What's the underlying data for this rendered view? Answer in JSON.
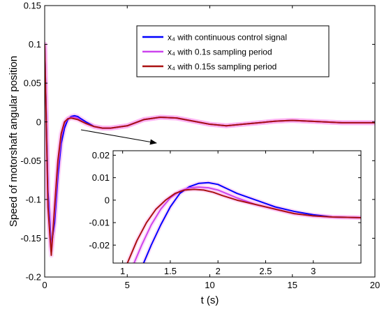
{
  "chart_data": [
    {
      "type": "line",
      "title": "",
      "xlabel": "t (s)",
      "ylabel": "Speed of motorshaft angular position",
      "xlim": [
        0,
        20
      ],
      "ylim": [
        -0.2,
        0.15
      ],
      "xticks": [
        "0",
        "5",
        "10",
        "15",
        "20"
      ],
      "yticks": [
        "-0.2",
        "-0.15",
        "-0.1",
        "-0.05",
        "0",
        "0.05",
        "0.1",
        "0.15"
      ],
      "grid": false,
      "legend_position": "top-right",
      "series": [
        {
          "name": "x₄ with continuous control signal",
          "color": "#0000ff",
          "x": [
            0,
            0.2,
            0.4,
            0.6,
            0.8,
            1.0,
            1.2,
            1.4,
            1.6,
            1.8,
            2.0,
            2.2,
            2.5,
            3.0,
            3.5,
            4.0,
            5.0,
            6.0,
            7.0,
            8.0,
            9.0,
            10.0,
            11.0,
            12.0,
            13.0,
            14.0,
            15.0,
            16.0,
            17.0,
            18.0,
            19.0,
            20.0
          ],
          "y": [
            0.1,
            -0.09,
            -0.16,
            -0.13,
            -0.07,
            -0.028,
            -0.008,
            0.003,
            0.007,
            0.008,
            0.007,
            0.004,
            0.0,
            -0.006,
            -0.008,
            -0.008,
            -0.005,
            0.003,
            0.006,
            0.005,
            0.001,
            -0.003,
            -0.005,
            -0.003,
            -0.001,
            0.001,
            0.002,
            0.001,
            0.0,
            -0.001,
            -0.001,
            -0.001
          ]
        },
        {
          "name": "x₄ with 0.1s sampling period",
          "color": "#cc44ee",
          "x": [
            0,
            0.2,
            0.4,
            0.6,
            0.8,
            1.0,
            1.2,
            1.4,
            1.6,
            1.8,
            2.0,
            2.2,
            2.5,
            3.0,
            3.5,
            4.0,
            5.0,
            6.0,
            7.0,
            8.0,
            9.0,
            10.0,
            11.0,
            12.0,
            13.0,
            14.0,
            15.0,
            16.0,
            17.0,
            18.0,
            19.0,
            20.0
          ],
          "y": [
            0.1,
            -0.1,
            -0.165,
            -0.12,
            -0.06,
            -0.02,
            -0.002,
            0.004,
            0.006,
            0.006,
            0.005,
            0.002,
            -0.002,
            -0.006,
            -0.008,
            -0.008,
            -0.005,
            0.003,
            0.006,
            0.005,
            0.001,
            -0.003,
            -0.005,
            -0.003,
            -0.001,
            0.001,
            0.002,
            0.001,
            0.0,
            -0.001,
            -0.001,
            -0.001
          ]
        },
        {
          "name": "x₄ with 0.15s sampling period",
          "color": "#aa1111",
          "x": [
            0,
            0.2,
            0.4,
            0.6,
            0.8,
            1.0,
            1.2,
            1.4,
            1.6,
            1.8,
            2.0,
            2.2,
            2.5,
            3.0,
            3.5,
            4.0,
            5.0,
            6.0,
            7.0,
            8.0,
            9.0,
            10.0,
            11.0,
            12.0,
            13.0,
            14.0,
            15.0,
            16.0,
            17.0,
            18.0,
            19.0,
            20.0
          ],
          "y": [
            0.1,
            -0.11,
            -0.172,
            -0.11,
            -0.05,
            -0.015,
            -0.0,
            0.004,
            0.005,
            0.004,
            0.003,
            0.001,
            -0.002,
            -0.006,
            -0.008,
            -0.008,
            -0.005,
            0.003,
            0.006,
            0.005,
            0.001,
            -0.003,
            -0.005,
            -0.003,
            -0.001,
            0.001,
            0.002,
            0.001,
            0.0,
            -0.001,
            -0.001,
            -0.001
          ]
        }
      ]
    },
    {
      "type": "line",
      "title": "",
      "xlabel": "",
      "ylabel": "",
      "xlim": [
        0.9,
        3.5
      ],
      "ylim": [
        -0.028,
        0.022
      ],
      "xticks": [
        "1",
        "1.5",
        "2",
        "2.5",
        "3"
      ],
      "yticks": [
        "-0.02",
        "-0.01",
        "0",
        "0.01",
        "0.02"
      ],
      "grid": false,
      "series": [
        {
          "name": "x₄ with continuous control signal",
          "color": "#0000ff",
          "x": [
            1.22,
            1.3,
            1.4,
            1.5,
            1.6,
            1.7,
            1.8,
            1.9,
            2.0,
            2.1,
            2.2,
            2.4,
            2.6,
            2.8,
            3.0,
            3.2,
            3.5
          ],
          "y": [
            -0.028,
            -0.02,
            -0.011,
            -0.003,
            0.003,
            0.006,
            0.0075,
            0.0078,
            0.007,
            0.005,
            0.003,
            0.0,
            -0.003,
            -0.005,
            -0.0065,
            -0.0075,
            -0.0078
          ]
        },
        {
          "name": "x₄ with 0.1s sampling period",
          "color": "#cc44ee",
          "x": [
            1.12,
            1.2,
            1.3,
            1.4,
            1.5,
            1.6,
            1.7,
            1.8,
            1.9,
            2.0,
            2.2,
            2.4,
            2.6,
            2.8,
            3.0,
            3.2,
            3.5
          ],
          "y": [
            -0.028,
            -0.02,
            -0.011,
            -0.004,
            0.001,
            0.004,
            0.0055,
            0.0058,
            0.0055,
            0.0045,
            0.001,
            -0.002,
            -0.004,
            -0.006,
            -0.007,
            -0.0075,
            -0.0078
          ]
        },
        {
          "name": "x₄ with 0.15s sampling period",
          "color": "#aa1111",
          "x": [
            1.05,
            1.15,
            1.25,
            1.35,
            1.45,
            1.55,
            1.65,
            1.75,
            1.85,
            1.95,
            2.05,
            2.2,
            2.4,
            2.6,
            2.8,
            3.0,
            3.2,
            3.5
          ],
          "y": [
            -0.028,
            -0.018,
            -0.01,
            -0.004,
            0.0,
            0.003,
            0.0045,
            0.0048,
            0.0045,
            0.0035,
            0.002,
            0.0,
            -0.002,
            -0.004,
            -0.006,
            -0.007,
            -0.0075,
            -0.0078
          ]
        }
      ]
    }
  ]
}
